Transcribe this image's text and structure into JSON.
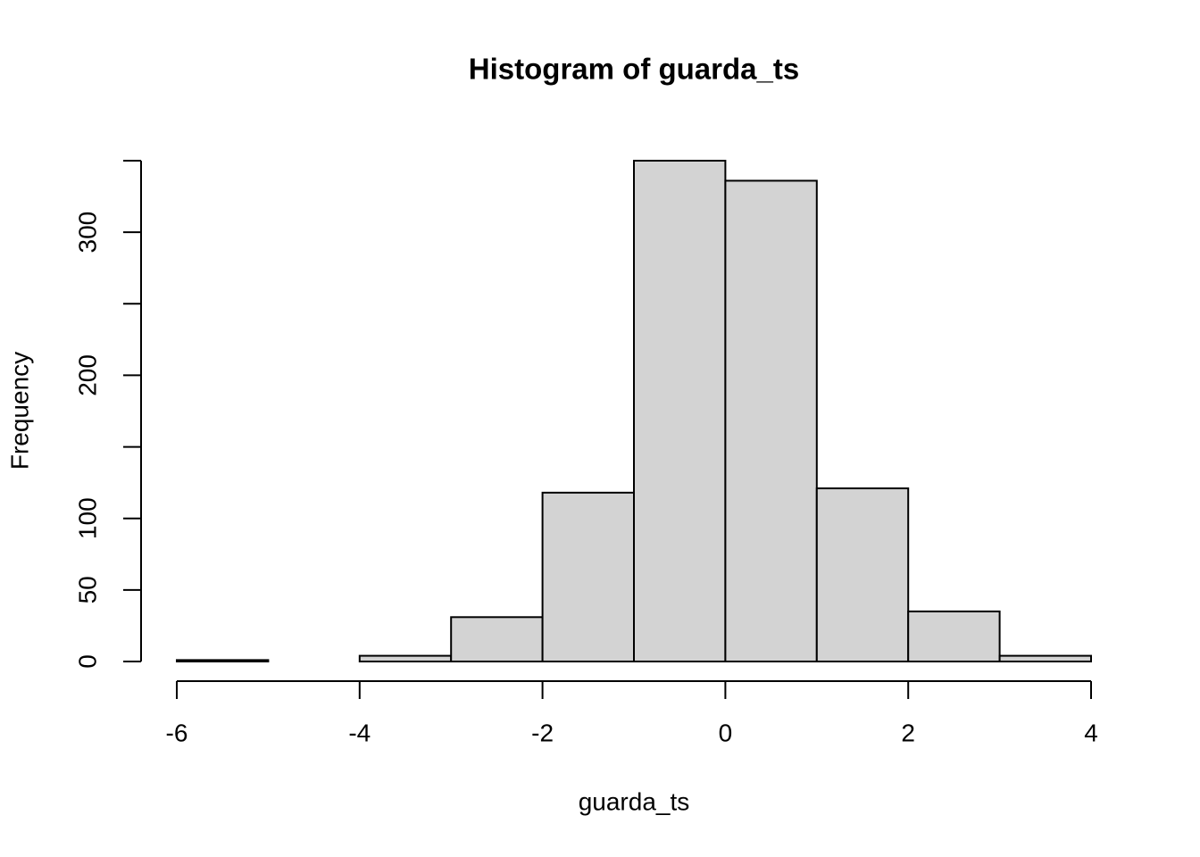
{
  "chart_data": {
    "type": "histogram",
    "title": "Histogram of guarda_ts",
    "x_label": "guarda_ts",
    "y_label": "Frequency",
    "bins": [
      -6,
      -5,
      -4,
      -3,
      -2,
      -1,
      0,
      1,
      2,
      3,
      4
    ],
    "values": [
      1,
      0,
      4,
      31,
      118,
      350,
      336,
      121,
      35,
      4
    ],
    "color": "#d3d3d3",
    "xlim": [
      -6,
      4
    ],
    "xticks": [
      -6,
      -4,
      -2,
      0,
      2,
      4
    ],
    "ylim": [
      0,
      350
    ],
    "yticks": [
      0,
      50,
      100,
      {
        "value": 150,
        "label": null
      },
      200,
      {
        "value": 250,
        "label": null
      },
      300,
      {
        "value": 350,
        "label": null
      }
    ]
  }
}
